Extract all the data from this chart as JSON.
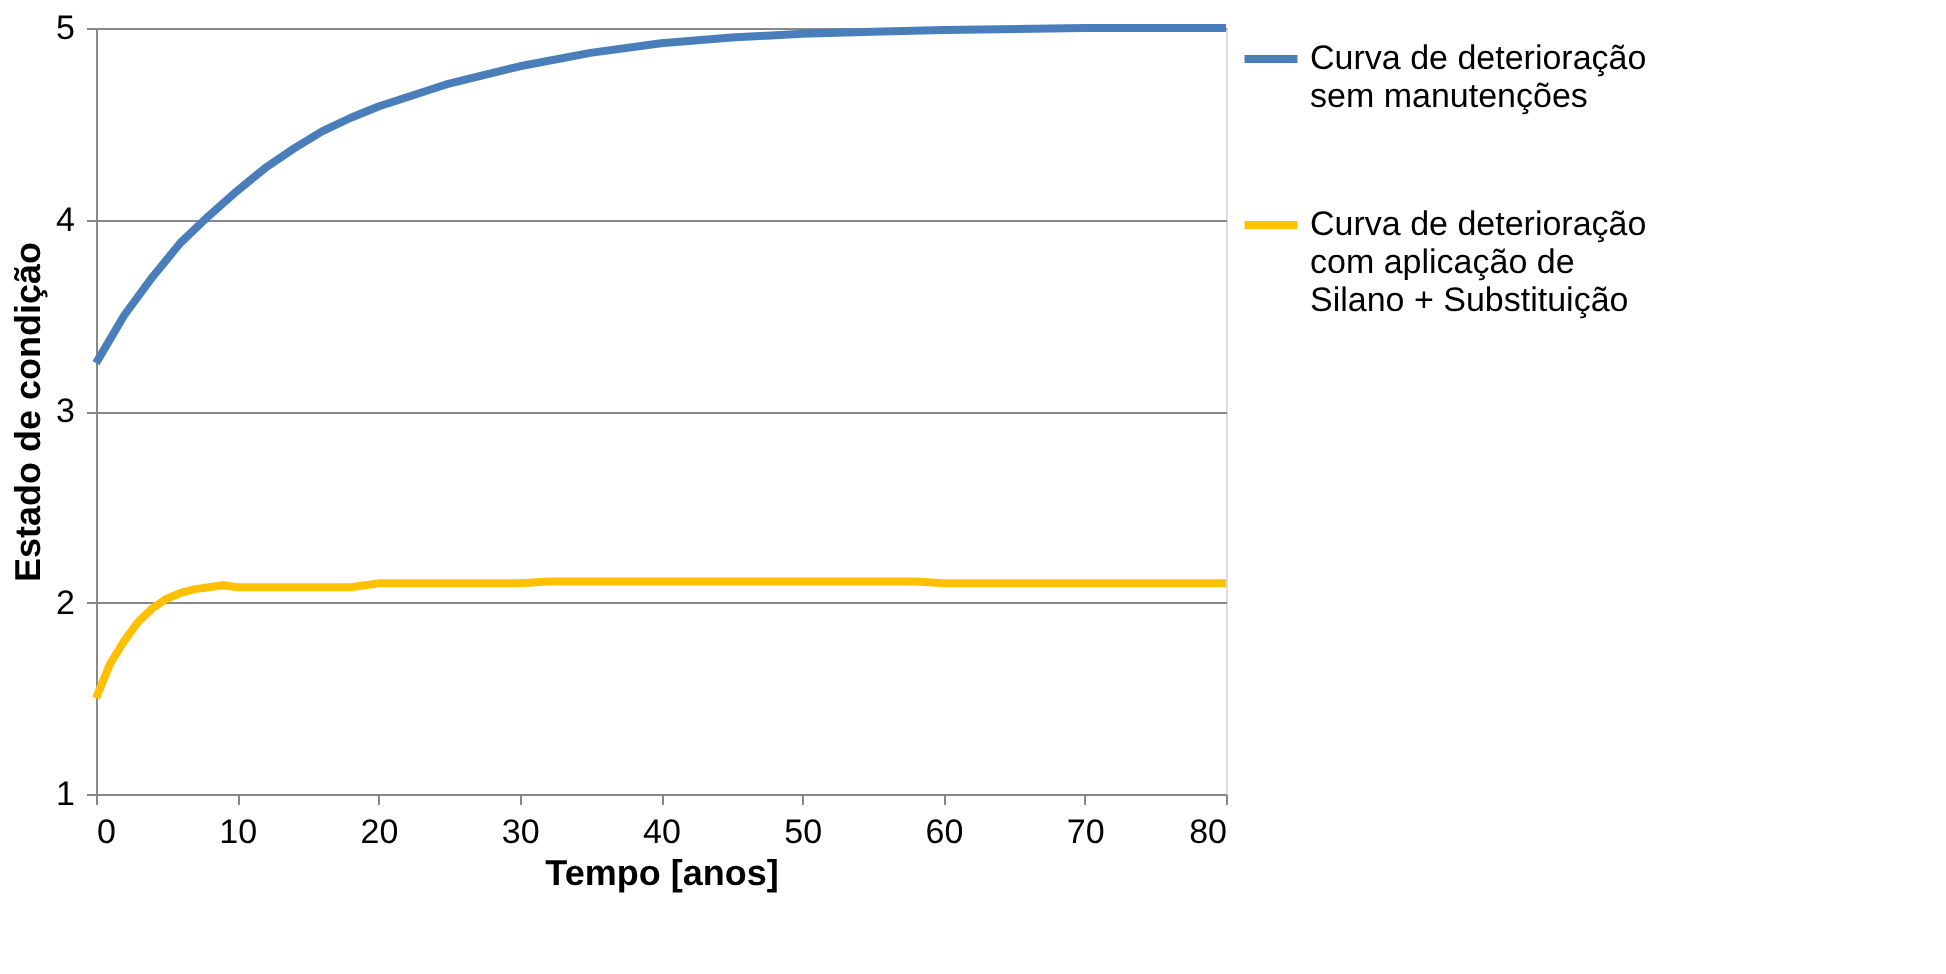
{
  "chart_data": {
    "type": "line",
    "xlabel": "Tempo [anos]",
    "ylabel": "Estado de condição",
    "xlim": [
      0,
      80
    ],
    "xticks": [
      0,
      10,
      20,
      30,
      40,
      50,
      60,
      70,
      80
    ],
    "ylim": [
      1,
      5
    ],
    "yticks": [
      1,
      2,
      3,
      4,
      5
    ],
    "grid": "y",
    "legend": "right",
    "marker": "none",
    "line_style": "solid",
    "series": [
      {
        "name": "Curva de deterioração sem manutenções",
        "color": "#4a7ebb",
        "x": [
          0,
          2,
          4,
          6,
          8,
          10,
          12,
          14,
          16,
          18,
          20,
          25,
          30,
          35,
          40,
          45,
          50,
          55,
          60,
          70,
          80
        ],
        "values": [
          3.25,
          3.5,
          3.7,
          3.88,
          4.02,
          4.15,
          4.27,
          4.37,
          4.46,
          4.53,
          4.59,
          4.71,
          4.8,
          4.87,
          4.92,
          4.95,
          4.97,
          4.98,
          4.99,
          5.0,
          5.0
        ]
      },
      {
        "name": "Curva de deterioração com aplicação de Silano + Substituição",
        "color": "#ffc000",
        "x": [
          0,
          1,
          2,
          3,
          4,
          5,
          6,
          7,
          8,
          9,
          10,
          18,
          20,
          30,
          32,
          58,
          60,
          80
        ],
        "values": [
          1.5,
          1.68,
          1.8,
          1.9,
          1.97,
          2.02,
          2.05,
          2.07,
          2.08,
          2.09,
          2.08,
          2.08,
          2.1,
          2.1,
          2.11,
          2.11,
          2.1,
          2.1
        ]
      }
    ]
  }
}
